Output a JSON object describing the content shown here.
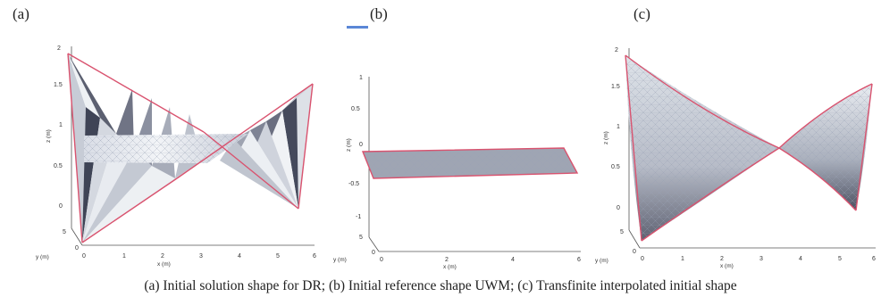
{
  "panels": [
    {
      "label": "(a)",
      "z_ticks": [
        "2",
        "1.5",
        "1",
        "0.5",
        "0"
      ],
      "y_ticks": [
        "5",
        "0"
      ],
      "x_ticks": [
        "0",
        "1",
        "2",
        "3",
        "4",
        "5",
        "6"
      ],
      "x_axis_label": "x (m)",
      "y_axis_label": "y (m)",
      "z_axis_label": "z (m)"
    },
    {
      "label": "(b)",
      "z_ticks": [
        "1",
        "0.5",
        "0",
        "-0.5",
        "-1"
      ],
      "y_ticks": [
        "5",
        "0"
      ],
      "x_ticks": [
        "0",
        "2",
        "4",
        "6"
      ],
      "x_axis_label": "x (m)",
      "y_axis_label": "y (m)",
      "z_axis_label": "z (m)"
    },
    {
      "label": "(c)",
      "z_ticks": [
        "2",
        "1.5",
        "1",
        "0.5",
        "0"
      ],
      "y_ticks": [
        "5",
        "0"
      ],
      "x_ticks": [
        "0",
        "1",
        "2",
        "3",
        "4",
        "5",
        "6"
      ],
      "x_axis_label": "x (m)",
      "y_axis_label": "y (m)",
      "z_axis_label": "z (m)"
    }
  ],
  "caption": "(a) Initial solution shape for DR; (b) Initial reference shape UWM; (c) Transfinite interpolated initial shape",
  "colors": {
    "edge": "#d9536f",
    "surface_light": "#e6eaf0",
    "surface_dark": "#4b4f60",
    "mesh": "#9aa2b4",
    "axis": "#555555",
    "marker": "#5a87d6"
  }
}
